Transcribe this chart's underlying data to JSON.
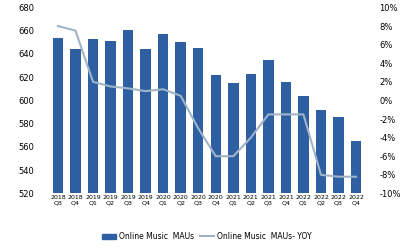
{
  "categories_year": [
    "2018",
    "2018",
    "2019",
    "2019",
    "2019",
    "2019",
    "2020",
    "2020",
    "2020",
    "2020",
    "2021",
    "2021",
    "2021",
    "2021",
    "2022",
    "2022",
    "2022",
    "2022"
  ],
  "categories_q": [
    "Q3",
    "Q4",
    "Q1",
    "Q2",
    "Q3",
    "Q4",
    "Q1",
    "Q2",
    "Q3",
    "Q4",
    "Q1",
    "Q2",
    "Q3",
    "Q4",
    "Q1",
    "Q2",
    "Q3",
    "Q4"
  ],
  "bar_values": [
    654,
    644,
    653,
    651,
    661,
    644,
    657,
    650,
    645,
    622,
    615,
    623,
    635,
    616,
    604,
    592,
    586,
    565
  ],
  "yoy_values": [
    0.08,
    0.075,
    0.02,
    0.015,
    0.013,
    0.01,
    0.012,
    0.005,
    -0.03,
    -0.06,
    -0.06,
    -0.04,
    -0.015,
    -0.015,
    -0.015,
    -0.08,
    -0.082,
    -0.082
  ],
  "bar_color": "#2E5FA3",
  "line_color": "#A0B4C8",
  "ylim_left": [
    520,
    680
  ],
  "ylim_right": [
    -0.1,
    0.1
  ],
  "yticks_left": [
    520,
    540,
    560,
    580,
    600,
    620,
    640,
    660,
    680
  ],
  "yticks_right": [
    -0.1,
    -0.08,
    -0.06,
    -0.04,
    -0.02,
    0.0,
    0.02,
    0.04,
    0.06,
    0.08,
    0.1
  ],
  "legend_bar": "Online Music  MAUs",
  "legend_line": "Online Music  MAUs- YOY",
  "background_color": "#ffffff",
  "bar_width": 0.6,
  "figsize": [
    4.14,
    2.48
  ],
  "dpi": 100
}
